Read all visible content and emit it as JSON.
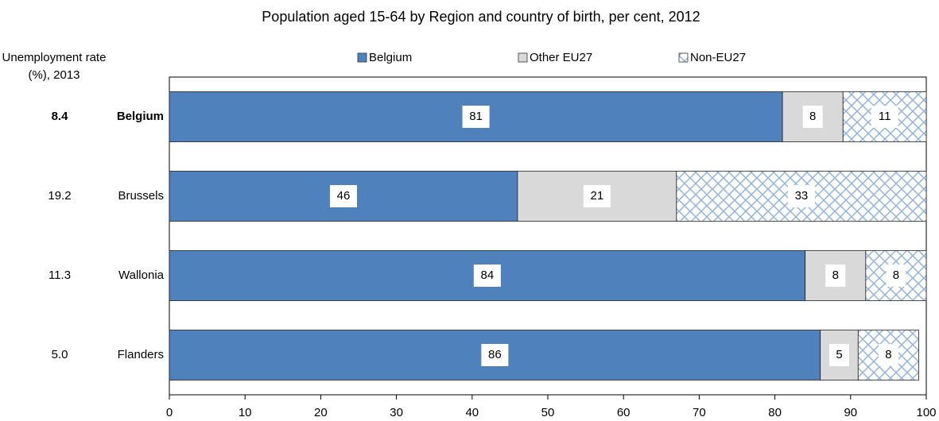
{
  "chart_data": {
    "type": "stacked-barh",
    "title": "Population aged 15-64 by Region and country of birth, per cent, 2012",
    "categories": [
      "Belgium",
      "Brussels",
      "Wallonia",
      "Flanders"
    ],
    "series": [
      {
        "name": "Belgium",
        "color": "#4f81bd",
        "values": [
          81,
          46,
          84,
          86
        ]
      },
      {
        "name": "Other EU27",
        "color": "#d9d9d9",
        "values": [
          8,
          21,
          8,
          5
        ]
      },
      {
        "name": "Non-EU27",
        "color": "#8fb4de",
        "pattern": "crosshatch",
        "values": [
          11,
          33,
          8,
          8
        ]
      }
    ],
    "xlim": [
      0,
      100
    ],
    "xticks": [
      0,
      10,
      20,
      30,
      40,
      50,
      60,
      70,
      80,
      90,
      100
    ],
    "side_column": {
      "label": "Unemployment rate (%), 2013",
      "values": [
        "8.4",
        "19.2",
        "11.3",
        "5.0"
      ]
    },
    "legend": "top"
  }
}
